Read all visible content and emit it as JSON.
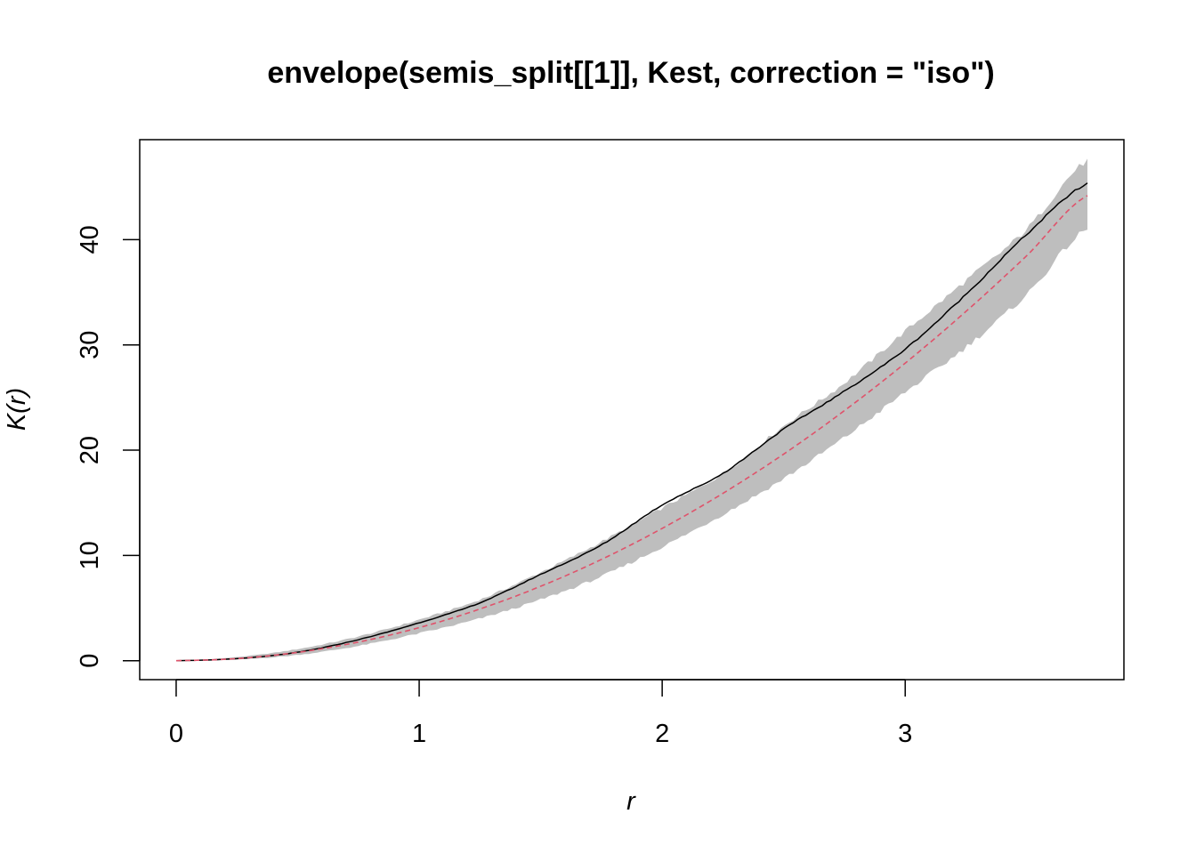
{
  "chart_data": {
    "type": "line",
    "title": "envelope(semis_split[[1]], Kest, correction = \"iso\")",
    "xlabel": "r",
    "ylabel": "K(r)",
    "xlim": [
      -0.15,
      3.9
    ],
    "ylim": [
      -1.8,
      49.5
    ],
    "x_ticks": [
      0,
      1,
      2,
      3
    ],
    "y_ticks": [
      0,
      10,
      20,
      30,
      40
    ],
    "grid": false,
    "legend": "none",
    "x": [
      0,
      0.25,
      0.5,
      0.75,
      1.0,
      1.25,
      1.5,
      1.75,
      2.0,
      2.25,
      2.5,
      2.75,
      3.0,
      3.25,
      3.5,
      3.75
    ],
    "series": [
      {
        "role": "observed",
        "color": "#000000",
        "style": "solid",
        "values": [
          0,
          0.2,
          0.8,
          2.0,
          3.6,
          5.5,
          8.2,
          11.0,
          14.8,
          17.8,
          22.0,
          25.6,
          29.6,
          34.8,
          40.5,
          45.3
        ]
      },
      {
        "role": "theoretical",
        "color": "#DF536B",
        "style": "dashed",
        "values": [
          0,
          0.2,
          0.79,
          1.77,
          3.14,
          4.91,
          7.07,
          9.62,
          12.57,
          15.9,
          19.63,
          23.76,
          28.27,
          33.18,
          38.48,
          44.18
        ]
      }
    ],
    "envelope": {
      "color": "#BEBEBE",
      "lo": [
        0,
        0.1,
        0.55,
        1.4,
        2.6,
        4.0,
        5.8,
        8.0,
        10.8,
        13.9,
        17.3,
        21.2,
        25.5,
        29.8,
        34.8,
        41.0
      ],
      "hi": [
        0,
        0.35,
        1.1,
        2.3,
        3.9,
        5.8,
        8.4,
        11.3,
        14.5,
        17.8,
        22.3,
        26.4,
        31.3,
        36.1,
        41.0,
        47.5
      ]
    }
  }
}
